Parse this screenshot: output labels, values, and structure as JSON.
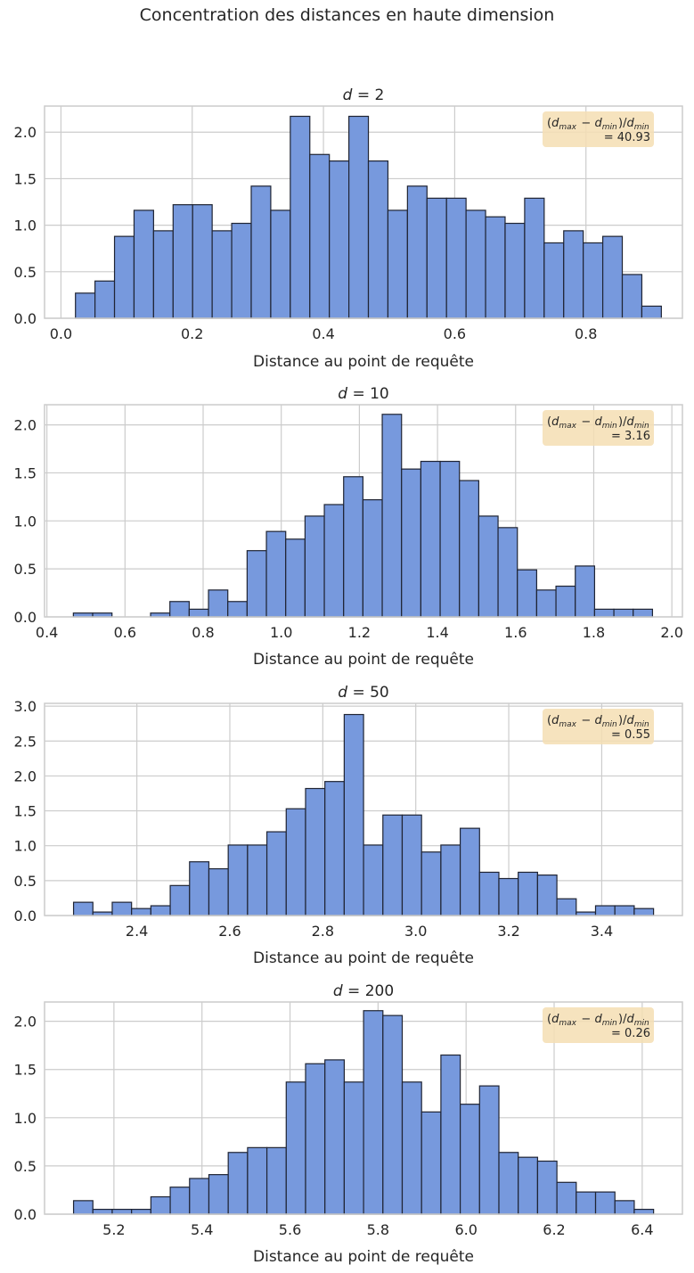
{
  "figure_title": "Concentration des distances en haute dimension",
  "colors": {
    "bar_fill": "#7799dd",
    "bar_edge": "#1f2433",
    "grid": "#cccccc",
    "spine": "#cccccc",
    "annotation_bg": "#f5deb3"
  },
  "chart_data": [
    {
      "type": "bar",
      "title": "d = 2",
      "xlabel": "Distance au point de requête",
      "ylabel": "",
      "xlim": [
        -0.025,
        0.947
      ],
      "ylim": [
        0,
        2.28
      ],
      "xticks": [
        0.0,
        0.2,
        0.4,
        0.6,
        0.8
      ],
      "xtick_labels": [
        "0.0",
        "0.2",
        "0.4",
        "0.6",
        "0.8"
      ],
      "yticks": [
        0.0,
        0.5,
        1.0,
        1.5,
        2.0
      ],
      "ytick_labels": [
        "0.0",
        "0.5",
        "1.0",
        "1.5",
        "2.0"
      ],
      "bin_start": 0.0221,
      "bin_width": 0.02976,
      "values": [
        0.27,
        0.4,
        0.88,
        1.16,
        0.94,
        1.22,
        1.22,
        0.94,
        1.02,
        1.42,
        1.16,
        2.17,
        1.76,
        1.69,
        2.17,
        1.69,
        1.16,
        1.42,
        1.29,
        1.29,
        1.16,
        1.09,
        1.02,
        1.29,
        0.81,
        0.94,
        0.81,
        0.88,
        0.47,
        0.13
      ],
      "annotation": {
        "line1": "(d_max − d_min)/d_min",
        "line2": "= 40.93"
      }
    },
    {
      "type": "bar",
      "title": "d = 10",
      "xlabel": "Distance au point de requête",
      "ylabel": "",
      "xlim": [
        0.394,
        2.027
      ],
      "ylim": [
        0,
        2.21
      ],
      "xticks": [
        0.4,
        0.6,
        0.8,
        1.0,
        1.2,
        1.4,
        1.6,
        1.8,
        2.0
      ],
      "xtick_labels": [
        "0.4",
        "0.6",
        "0.8",
        "1.0",
        "1.2",
        "1.4",
        "1.6",
        "1.8",
        "2.0"
      ],
      "yticks": [
        0.0,
        0.5,
        1.0,
        1.5,
        2.0
      ],
      "ytick_labels": [
        "0.0",
        "0.5",
        "1.0",
        "1.5",
        "2.0"
      ],
      "bin_start": 0.4678,
      "bin_width": 0.04942,
      "values": [
        0.04,
        0.04,
        0.0,
        0.0,
        0.04,
        0.16,
        0.08,
        0.28,
        0.16,
        0.69,
        0.89,
        0.81,
        1.05,
        1.17,
        1.46,
        1.22,
        2.11,
        1.54,
        1.62,
        1.62,
        1.42,
        1.05,
        0.93,
        0.49,
        0.28,
        0.32,
        0.53,
        0.08,
        0.08,
        0.08
      ],
      "annotation": {
        "line1": "(d_max − d_min)/d_min",
        "line2": "= 3.16"
      }
    },
    {
      "type": "bar",
      "title": "d = 50",
      "xlabel": "Distance au point de requête",
      "ylabel": "",
      "xlim": [
        2.2014,
        3.5736
      ],
      "ylim": [
        0,
        3.04
      ],
      "xticks": [
        2.4,
        2.6,
        2.8,
        3.0,
        3.2,
        3.4
      ],
      "xtick_labels": [
        "2.4",
        "2.6",
        "2.8",
        "3.0",
        "3.2",
        "3.4"
      ],
      "yticks": [
        0.0,
        0.5,
        1.0,
        1.5,
        2.0,
        2.5,
        3.0
      ],
      "ytick_labels": [
        "0.0",
        "0.5",
        "1.0",
        "1.5",
        "2.0",
        "2.5",
        "3.0"
      ],
      "bin_start": 2.2638,
      "bin_width": 0.04159,
      "values": [
        0.19,
        0.05,
        0.19,
        0.1,
        0.14,
        0.43,
        0.77,
        0.67,
        1.01,
        1.01,
        1.2,
        1.53,
        1.82,
        1.92,
        2.88,
        1.01,
        1.44,
        1.44,
        0.91,
        1.01,
        1.25,
        0.62,
        0.53,
        0.62,
        0.58,
        0.24,
        0.05,
        0.14,
        0.14,
        0.1
      ],
      "annotation": {
        "line1": "(d_max − d_min)/d_min",
        "line2": "= 0.55"
      }
    },
    {
      "type": "bar",
      "title": "d = 200",
      "xlabel": "Distance au point de requête",
      "ylabel": "",
      "xlim": [
        5.0424,
        6.4914
      ],
      "ylim": [
        0,
        2.2
      ],
      "xticks": [
        5.2,
        5.4,
        5.6,
        5.8,
        6.0,
        6.2,
        6.4
      ],
      "xtick_labels": [
        "5.2",
        "5.4",
        "5.6",
        "5.8",
        "6.0",
        "6.2",
        "6.4"
      ],
      "yticks": [
        0.0,
        0.5,
        1.0,
        1.5,
        2.0
      ],
      "ytick_labels": [
        "0.0",
        "0.5",
        "1.0",
        "1.5",
        "2.0"
      ],
      "bin_start": 5.1083,
      "bin_width": 0.04392,
      "values": [
        0.14,
        0.05,
        0.05,
        0.05,
        0.18,
        0.28,
        0.37,
        0.41,
        0.64,
        0.69,
        0.69,
        1.37,
        1.56,
        1.6,
        1.37,
        2.11,
        2.06,
        1.37,
        1.06,
        1.65,
        1.14,
        1.33,
        0.64,
        0.59,
        0.55,
        0.33,
        0.23,
        0.23,
        0.14,
        0.05
      ],
      "annotation": {
        "line1": "(d_max − d_min)/d_min",
        "line2": "= 0.26"
      }
    }
  ]
}
